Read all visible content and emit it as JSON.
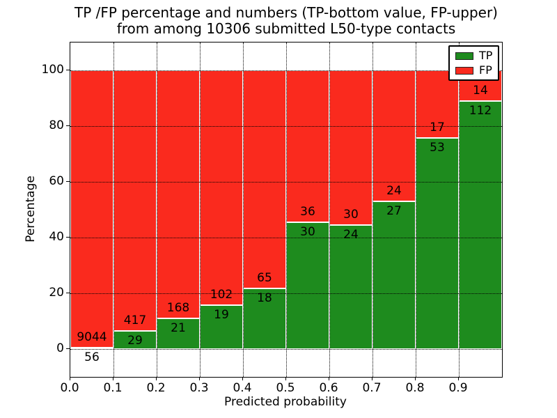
{
  "title": {
    "line1": "TP /FP percentage and numbers (TP-bottom value, FP-upper)",
    "line2": "from among 10306 submitted L50-type contacts"
  },
  "axes": {
    "xlabel": "Predicted probability",
    "ylabel": "Percentage",
    "xticks": [
      "0.0",
      "0.1",
      "0.2",
      "0.3",
      "0.4",
      "0.5",
      "0.6",
      "0.7",
      "0.8",
      "0.9"
    ],
    "yticks": [
      "0",
      "20",
      "40",
      "60",
      "80",
      "100"
    ]
  },
  "legend": {
    "items": [
      {
        "label": "TP",
        "color": "#1e8b1e"
      },
      {
        "label": "FP",
        "color": "#fa2a1e"
      }
    ]
  },
  "chart_data": {
    "type": "bar",
    "stacked": true,
    "title": "TP /FP percentage and numbers (TP-bottom value, FP-upper)\nfrom among 10306 submitted L50-type contacts",
    "xlabel": "Predicted probability",
    "ylabel": "Percentage",
    "xlim": [
      0.0,
      1.0
    ],
    "ylim": [
      -10,
      110
    ],
    "grid": "dotted",
    "legend_position": "upper right",
    "bin_edges": [
      0.0,
      0.1,
      0.2,
      0.3,
      0.4,
      0.5,
      0.6,
      0.7,
      0.8,
      0.9,
      1.0
    ],
    "categories": [
      "0.0-0.1",
      "0.1-0.2",
      "0.2-0.3",
      "0.3-0.4",
      "0.4-0.5",
      "0.5-0.6",
      "0.6-0.7",
      "0.7-0.8",
      "0.8-0.9",
      "0.9-1.0"
    ],
    "series": [
      {
        "name": "TP",
        "color": "#1e8b1e",
        "counts": [
          56,
          29,
          21,
          19,
          18,
          30,
          24,
          27,
          53,
          112
        ],
        "percent": [
          0.62,
          6.5,
          11.11,
          15.7,
          21.69,
          45.45,
          44.44,
          52.94,
          75.71,
          88.89
        ]
      },
      {
        "name": "FP",
        "color": "#fa2a1e",
        "counts": [
          9044,
          417,
          168,
          102,
          65,
          36,
          30,
          24,
          17,
          14
        ],
        "percent": [
          99.38,
          93.5,
          88.89,
          84.3,
          78.31,
          54.55,
          55.56,
          47.06,
          24.29,
          11.11
        ]
      }
    ],
    "total_contacts": 10306
  }
}
